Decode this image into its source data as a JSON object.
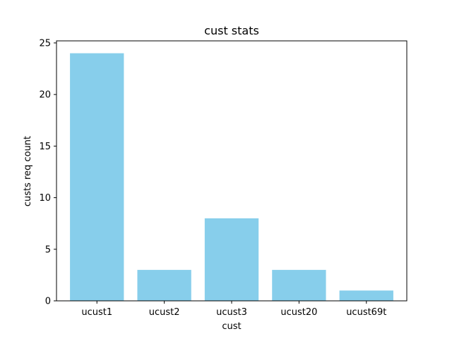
{
  "chart_data": {
    "type": "bar",
    "title": "cust stats",
    "xlabel": "cust",
    "ylabel": "custs req count",
    "categories": [
      "ucust1",
      "ucust2",
      "ucust3",
      "ucust20",
      "ucust69t"
    ],
    "values": [
      24,
      3,
      8,
      3,
      1
    ],
    "ylim": [
      0,
      25.2
    ],
    "yticks": [
      0,
      5,
      10,
      15,
      20,
      25
    ],
    "bar_color": "#87ceeb",
    "grid": false,
    "legend": null
  }
}
